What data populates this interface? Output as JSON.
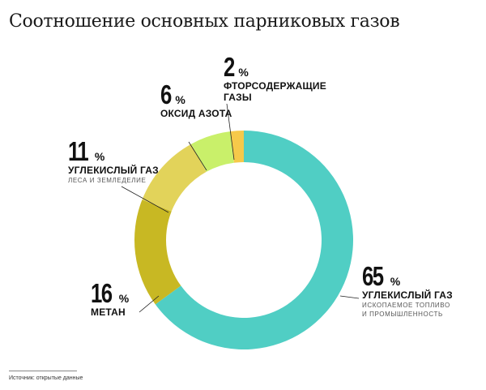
{
  "title": "Соотношение основных парниковых газов",
  "source": "Источник: открытые данные",
  "chart_data": {
    "type": "pie",
    "donut": true,
    "title": "Соотношение основных парниковых газов",
    "slices": [
      {
        "value": 65,
        "pct_sign": "%",
        "name": "УГЛЕКИСЛЫЙ ГАЗ",
        "sub1": "ИСКОПАЕМОЕ ТОПЛИВО",
        "sub2": "И ПРОМЫШЛЕННОСТЬ",
        "color": "#50cec4"
      },
      {
        "value": 16,
        "pct_sign": "%",
        "name": "МЕТАН",
        "sub1": "",
        "sub2": "",
        "color": "#c8b823"
      },
      {
        "value": 11,
        "pct_sign": "%",
        "name": "УГЛЕКИСЛЫЙ ГАЗ",
        "sub1": "ЛЕСА И ЗЕМЛЕДЕЛИЕ",
        "sub2": "",
        "color": "#e2d35a"
      },
      {
        "value": 6,
        "pct_sign": "%",
        "name": "ОКСИД АЗОТА",
        "sub1": "",
        "sub2": "",
        "color": "#c9f06a"
      },
      {
        "value": 2,
        "pct_sign": "%",
        "name": "ФТОРСОДЕРЖАЩИЕ",
        "name2": "ГАЗЫ",
        "sub1": "",
        "sub2": "",
        "color": "#f6c94a"
      }
    ]
  }
}
